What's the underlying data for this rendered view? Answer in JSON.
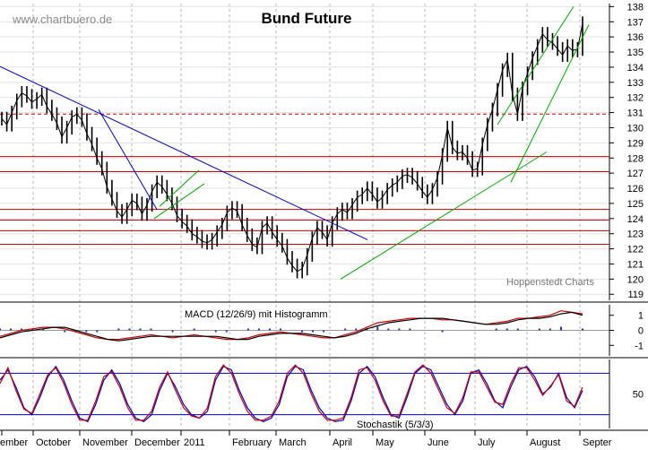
{
  "chart_data": [
    {
      "type": "candlestick",
      "title": "Bund Future",
      "watermark": "www.chartbuero.de",
      "credit": "Hoppenstedt Charts",
      "x_months": [
        "ember",
        "October",
        "November",
        "December",
        "2011",
        "February",
        "March",
        "April",
        "May",
        "June",
        "July",
        "August",
        "Septer"
      ],
      "y_ticks": [
        119,
        120,
        121,
        122,
        123,
        124,
        125,
        126,
        127,
        128,
        129,
        130,
        131,
        132,
        133,
        134,
        135,
        136,
        137,
        138
      ],
      "ylim": [
        118.6,
        138.2
      ],
      "horizontal_levels": [
        {
          "value": 130.9,
          "style": "dashed",
          "color": "#cc0000"
        },
        {
          "value": 128.1,
          "style": "solid",
          "color": "#cc0000"
        },
        {
          "value": 127.1,
          "style": "solid",
          "color": "#cc0000"
        },
        {
          "value": 124.6,
          "style": "solid",
          "color": "#cc0000"
        },
        {
          "value": 123.9,
          "style": "solid",
          "color": "#cc0000"
        },
        {
          "value": 123.2,
          "style": "solid",
          "color": "#cc0000"
        },
        {
          "value": 122.3,
          "style": "solid",
          "color": "#cc0000"
        }
      ],
      "price_series": [
        130.6,
        130.2,
        131.0,
        131.8,
        132.3,
        132.1,
        131.7,
        131.9,
        132.2,
        131.4,
        130.9,
        130.3,
        129.4,
        130.0,
        130.7,
        130.9,
        130.5,
        129.6,
        128.9,
        128.0,
        127.3,
        126.1,
        125.3,
        124.5,
        124.1,
        124.6,
        125.2,
        125.0,
        124.3,
        124.9,
        125.8,
        126.4,
        126.1,
        125.6,
        125.0,
        124.2,
        123.8,
        123.5,
        123.0,
        122.8,
        122.5,
        122.4,
        122.6,
        123.1,
        123.6,
        124.4,
        124.7,
        124.5,
        123.6,
        122.9,
        122.3,
        122.1,
        123.4,
        123.7,
        123.1,
        122.6,
        122.2,
        121.4,
        120.9,
        120.5,
        120.7,
        121.6,
        122.7,
        123.4,
        123.1,
        122.6,
        123.7,
        124.3,
        124.6,
        124.4,
        124.9,
        125.4,
        125.6,
        126.0,
        125.6,
        125.1,
        125.4,
        125.9,
        126.2,
        126.4,
        126.8,
        126.9,
        126.7,
        126.3,
        125.8,
        125.4,
        125.9,
        126.7,
        128.2,
        130.0,
        128.7,
        128.3,
        128.4,
        128.0,
        127.2,
        127.3,
        128.9,
        130.2,
        131.2,
        132.5,
        133.8,
        134.5,
        132.2,
        130.9,
        132.6,
        133.6,
        134.6,
        135.4,
        136.2,
        135.8,
        135.6,
        135.2,
        134.8,
        135.4,
        135.1,
        135.2,
        136.9
      ],
      "trendlines": [
        {
          "color": "#0000cc",
          "from": [
            -2,
            134.1
          ],
          "to": [
            410,
            122.6
          ]
        },
        {
          "color": "#0000cc",
          "from": [
            110,
            131.2
          ],
          "to": [
            175,
            124.6
          ]
        },
        {
          "color": "#00aa00",
          "from": [
            172,
            124.0
          ],
          "to": [
            228,
            126.3
          ]
        },
        {
          "color": "#00aa00",
          "from": [
            178,
            124.8
          ],
          "to": [
            222,
            127.2
          ]
        },
        {
          "color": "#00aa00",
          "from": [
            380,
            120.0
          ],
          "to": [
            610,
            128.4
          ]
        },
        {
          "color": "#00aa00",
          "from": [
            555,
            130.2
          ],
          "to": [
            640,
            138.0
          ]
        },
        {
          "color": "#00aa00",
          "from": [
            570,
            126.4
          ],
          "to": [
            657,
            136.8
          ]
        }
      ]
    },
    {
      "type": "line",
      "title": "MACD (12/26/9) mit Histogramm",
      "y_ticks": [
        1,
        0,
        -1
      ],
      "ylim": [
        -1.7,
        1.7
      ],
      "series": [
        {
          "color": "#cc0000",
          "values": [
            -0.4,
            -0.2,
            0.0,
            0.1,
            0.2,
            0.2,
            0.1,
            -0.1,
            -0.3,
            -0.5,
            -0.6,
            -0.6,
            -0.5,
            -0.4,
            -0.3,
            -0.4,
            -0.5,
            -0.4,
            -0.3,
            -0.4,
            -0.5,
            -0.6,
            -0.6,
            -0.5,
            -0.3,
            -0.2,
            -0.1,
            -0.2,
            -0.3,
            -0.4,
            -0.5,
            -0.5,
            -0.3,
            -0.1,
            0.2,
            0.5,
            0.6,
            0.7,
            0.8,
            0.8,
            0.8,
            0.7,
            0.7,
            0.6,
            0.5,
            0.4,
            0.5,
            0.6,
            0.8,
            0.8,
            0.9,
            1.0,
            1.3,
            1.2,
            1.1
          ]
        },
        {
          "color": "#000000",
          "values": [
            -0.5,
            -0.3,
            -0.1,
            0.0,
            0.1,
            0.2,
            0.2,
            0.0,
            -0.2,
            -0.4,
            -0.6,
            -0.7,
            -0.6,
            -0.5,
            -0.4,
            -0.4,
            -0.4,
            -0.4,
            -0.4,
            -0.4,
            -0.4,
            -0.5,
            -0.6,
            -0.6,
            -0.4,
            -0.3,
            -0.2,
            -0.2,
            -0.2,
            -0.3,
            -0.4,
            -0.5,
            -0.4,
            -0.2,
            0.1,
            0.3,
            0.5,
            0.6,
            0.7,
            0.8,
            0.8,
            0.8,
            0.7,
            0.6,
            0.5,
            0.4,
            0.4,
            0.5,
            0.7,
            0.8,
            0.8,
            0.9,
            1.1,
            1.2,
            1.0
          ]
        }
      ]
    },
    {
      "type": "line",
      "title": "Stochastik  (5/3/3)",
      "y_ticks": [
        50
      ],
      "ylim": [
        0,
        100
      ],
      "levels": [
        20,
        80
      ],
      "series": [
        {
          "color": "#0000cc",
          "values": [
            70,
            85,
            60,
            30,
            20,
            45,
            75,
            90,
            70,
            40,
            15,
            10,
            35,
            70,
            85,
            65,
            35,
            15,
            10,
            20,
            55,
            80,
            60,
            35,
            20,
            15,
            25,
            70,
            90,
            85,
            55,
            30,
            15,
            10,
            15,
            35,
            75,
            90,
            85,
            55,
            30,
            15,
            10,
            12,
            40,
            80,
            90,
            75,
            45,
            20,
            15,
            45,
            80,
            90,
            85,
            60,
            35,
            20,
            40,
            80,
            85,
            65,
            40,
            30,
            60,
            85,
            90,
            75,
            50,
            60,
            80,
            45,
            30,
            55
          ]
        },
        {
          "color": "#cc0000",
          "values": [
            65,
            88,
            55,
            28,
            22,
            50,
            78,
            88,
            65,
            35,
            12,
            12,
            40,
            75,
            82,
            60,
            30,
            12,
            12,
            25,
            60,
            82,
            55,
            30,
            18,
            15,
            30,
            75,
            92,
            80,
            50,
            25,
            12,
            12,
            18,
            40,
            80,
            92,
            80,
            50,
            25,
            12,
            12,
            15,
            45,
            85,
            88,
            70,
            40,
            18,
            18,
            50,
            82,
            92,
            80,
            55,
            30,
            22,
            45,
            82,
            82,
            60,
            38,
            35,
            65,
            88,
            88,
            70,
            48,
            62,
            78,
            40,
            32,
            60
          ]
        }
      ]
    }
  ]
}
